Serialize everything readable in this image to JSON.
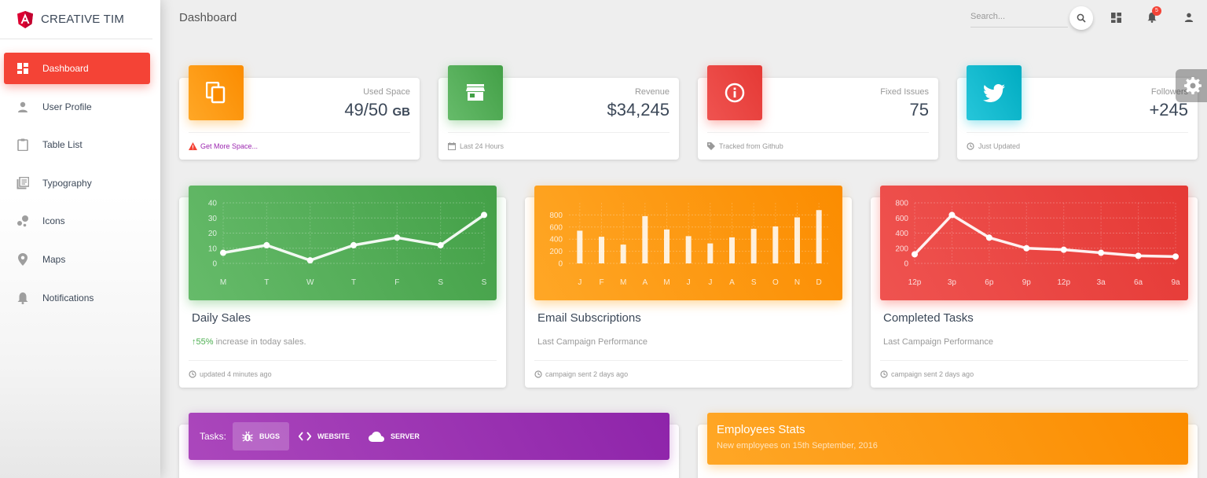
{
  "brand": {
    "name": "CREATIVE TIM",
    "logo_icon": "angular-logo-icon",
    "accent": "#f44336"
  },
  "sidebar": {
    "items": [
      {
        "label": "Dashboard",
        "icon": "dashboard-icon",
        "active": true
      },
      {
        "label": "User Profile",
        "icon": "person-icon",
        "active": false
      },
      {
        "label": "Table List",
        "icon": "clipboard-icon",
        "active": false
      },
      {
        "label": "Typography",
        "icon": "library-books-icon",
        "active": false
      },
      {
        "label": "Icons",
        "icon": "bubble-chart-icon",
        "active": false
      },
      {
        "label": "Maps",
        "icon": "location-pin-icon",
        "active": false
      },
      {
        "label": "Notifications",
        "icon": "bell-icon",
        "active": false
      }
    ]
  },
  "header": {
    "title": "Dashboard",
    "search_placeholder": "Search...",
    "notification_count": "5"
  },
  "stats": [
    {
      "category": "Used Space",
      "value": "49/50",
      "unit": "GB",
      "footer": "Get More Space...",
      "color": "#ff9800",
      "icon": "content-copy-icon",
      "footer_icon": "warning-icon"
    },
    {
      "category": "Revenue",
      "value": "$34,245",
      "footer": "Last 24 Hours",
      "color": "#4caf50",
      "icon": "store-icon",
      "footer_icon": "calendar-icon"
    },
    {
      "category": "Fixed Issues",
      "value": "75",
      "footer": "Tracked from Github",
      "color": "#f44336",
      "icon": "info-icon",
      "footer_icon": "tag-icon"
    },
    {
      "category": "Followers",
      "value": "+245",
      "footer": "Just Updated",
      "color": "#00bcd4",
      "icon": "twitter-icon",
      "footer_icon": "update-icon"
    }
  ],
  "charts": [
    {
      "title": "Daily Sales",
      "category_pct": "55%",
      "category_rest": " increase in today sales.",
      "footer": "updated 4 minutes ago"
    },
    {
      "title": "Email Subscriptions",
      "category": "Last Campaign Performance",
      "footer": "campaign sent 2 days ago"
    },
    {
      "title": "Completed Tasks",
      "category": "Last Campaign Performance",
      "footer": "campaign sent 2 days ago"
    }
  ],
  "chart_data": [
    {
      "type": "line",
      "categories": [
        "M",
        "T",
        "W",
        "T",
        "F",
        "S",
        "S"
      ],
      "values": [
        7,
        12,
        2,
        12,
        17,
        12,
        32
      ],
      "ylim": [
        0,
        40
      ],
      "yticks": [
        "0",
        "10",
        "20",
        "30",
        "40"
      ],
      "grid": true
    },
    {
      "type": "bar",
      "categories": [
        "J",
        "F",
        "M",
        "A",
        "M",
        "J",
        "J",
        "A",
        "S",
        "O",
        "N",
        "D"
      ],
      "values": [
        540,
        440,
        310,
        780,
        560,
        450,
        330,
        430,
        570,
        610,
        760,
        880
      ],
      "ylim": [
        0,
        1000
      ],
      "yticks": [
        "0",
        "200",
        "400",
        "600",
        "800"
      ],
      "grid": true
    },
    {
      "type": "line",
      "categories": [
        "12p",
        "3p",
        "6p",
        "9p",
        "12p",
        "3a",
        "6a",
        "9a"
      ],
      "values": [
        120,
        640,
        340,
        200,
        180,
        140,
        100,
        90
      ],
      "ylim": [
        0,
        800
      ],
      "yticks": [
        "0",
        "200",
        "400",
        "600",
        "800"
      ],
      "grid": true
    }
  ],
  "tasks": {
    "label": "Tasks:",
    "tabs": [
      {
        "label": "BUGS",
        "icon": "bug-icon",
        "active": true
      },
      {
        "label": "WEBSITE",
        "icon": "code-icon",
        "active": false
      },
      {
        "label": "SERVER",
        "icon": "cloud-icon",
        "active": false
      }
    ]
  },
  "employees": {
    "title": "Employees Stats",
    "subtitle": "New employees on 15th September, 2016"
  }
}
